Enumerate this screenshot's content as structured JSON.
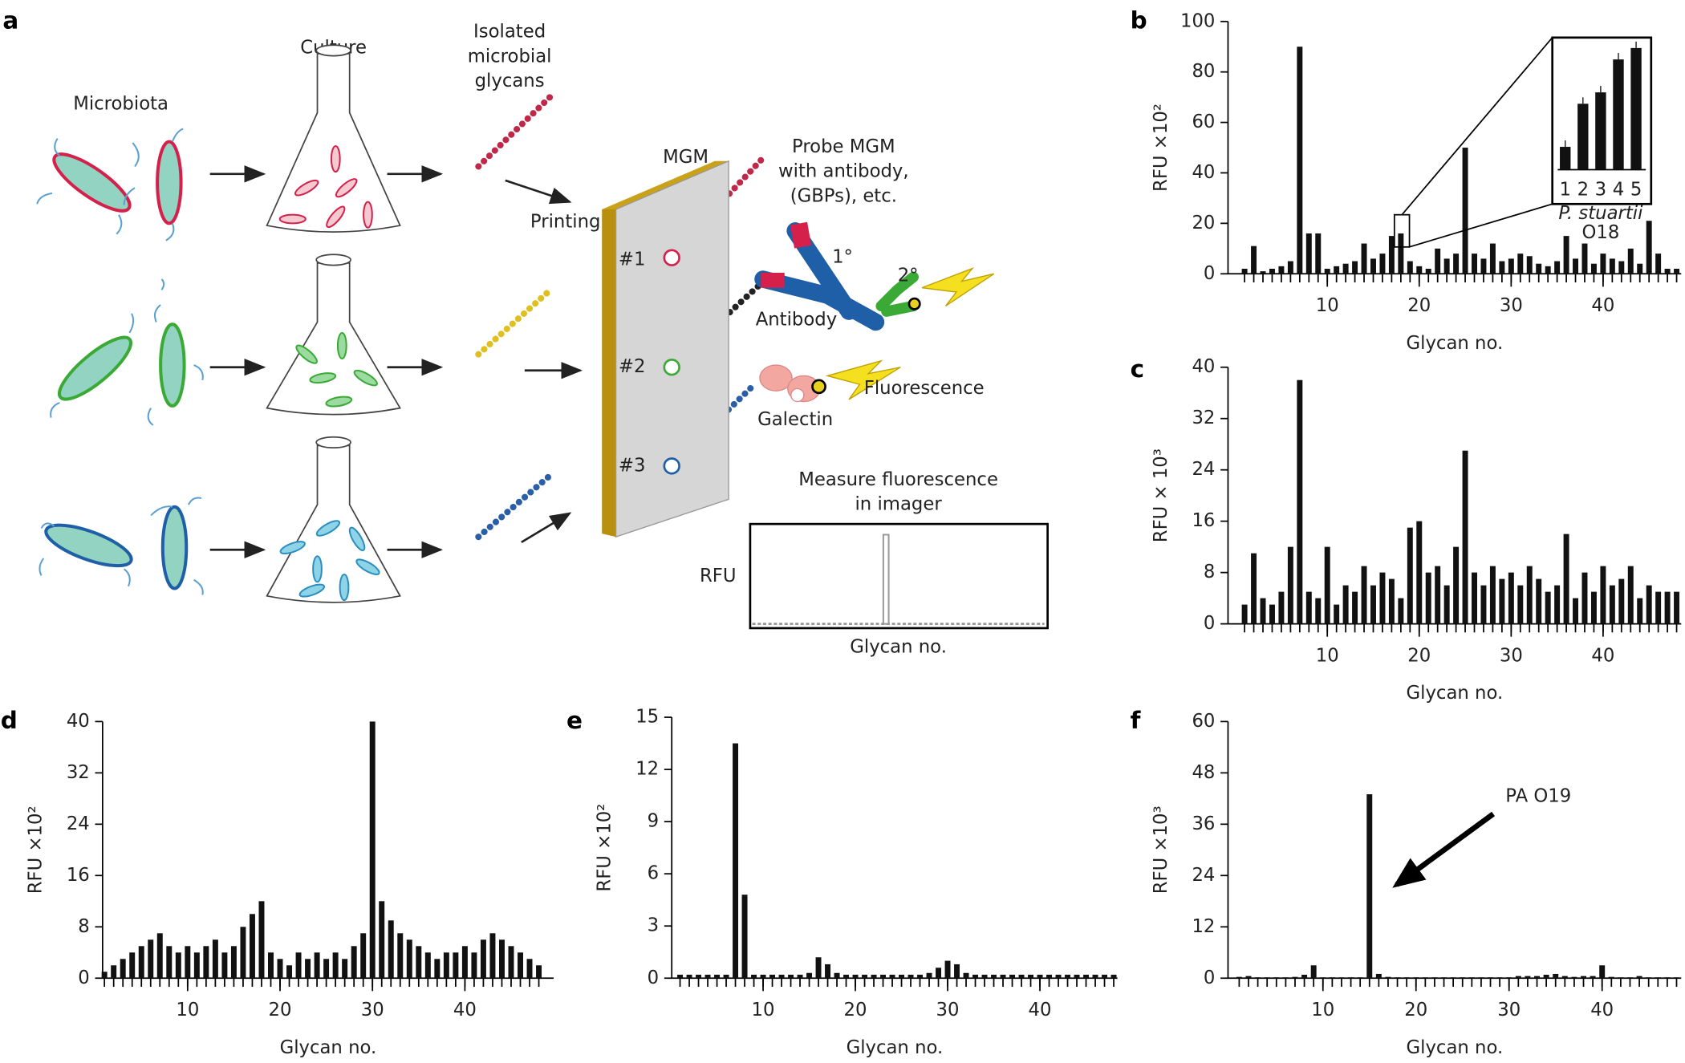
{
  "diagram": {
    "panel": "a",
    "microbiota": "Microbiota",
    "culture": "Culture",
    "isolated": [
      "Isolated",
      "microbial",
      "glycans"
    ],
    "printing": "Printing",
    "mgm": "MGM",
    "probe": [
      "Probe MGM",
      "with antibody,",
      "(GBPs), etc."
    ],
    "spots": [
      "#1",
      "#2",
      "#3"
    ],
    "primary": "1°",
    "secondary": "2°",
    "antibody": "Antibody",
    "fluorescence": "Fluorescence",
    "galectin": "Galectin",
    "measure": [
      "Measure fluorescence",
      "in imager"
    ],
    "rfu": "RFU",
    "glycan": "Glycan no."
  },
  "chart_data": [
    {
      "panel": "b",
      "type": "bar",
      "xlabel": "Glycan no.",
      "ylabel": "RFU ×10²",
      "color": "#111",
      "x": [
        1,
        2,
        3,
        4,
        5,
        6,
        7,
        8,
        9,
        10,
        11,
        12,
        13,
        14,
        15,
        16,
        17,
        18,
        19,
        20,
        21,
        22,
        23,
        24,
        25,
        26,
        27,
        28,
        29,
        30,
        31,
        32,
        33,
        34,
        35,
        36,
        37,
        38,
        39,
        40,
        41,
        42,
        43,
        44,
        45,
        46,
        47,
        48
      ],
      "values": [
        2,
        11,
        1,
        2,
        3,
        5,
        90,
        16,
        16,
        2,
        3,
        4,
        5,
        12,
        6,
        8,
        15,
        16,
        5,
        3,
        2,
        10,
        6,
        8,
        50,
        8,
        6,
        12,
        5,
        6,
        8,
        7,
        4,
        3,
        5,
        15,
        6,
        12,
        4,
        8,
        6,
        5,
        10,
        4,
        21,
        8,
        2,
        2
      ],
      "xlim": [
        -0.8,
        48.5
      ],
      "xticks": [
        10,
        20,
        30,
        40
      ],
      "ylim": [
        0,
        100
      ],
      "yticks": [
        0,
        20,
        40,
        60,
        80,
        100
      ],
      "inset": {
        "type": "bar",
        "categories": [
          "1",
          "2",
          "3",
          "4",
          "5"
        ],
        "values": [
          18,
          52,
          61,
          87,
          96
        ],
        "ylim": [
          0,
          100
        ],
        "caption": [
          "P. stuartii",
          "O18"
        ]
      }
    },
    {
      "panel": "c",
      "type": "bar",
      "xlabel": "Glycan no.",
      "ylabel": "RFU × 10³",
      "color": "#111",
      "x": [
        1,
        2,
        3,
        4,
        5,
        6,
        7,
        8,
        9,
        10,
        11,
        12,
        13,
        14,
        15,
        16,
        17,
        18,
        19,
        20,
        21,
        22,
        23,
        24,
        25,
        26,
        27,
        28,
        29,
        30,
        31,
        32,
        33,
        34,
        35,
        36,
        37,
        38,
        39,
        40,
        41,
        42,
        43,
        44,
        45,
        46,
        47,
        48
      ],
      "values": [
        3,
        11,
        4,
        3,
        5,
        12,
        38,
        5,
        4,
        12,
        3,
        6,
        5,
        9,
        6,
        8,
        7,
        4,
        15,
        16,
        8,
        9,
        6,
        12,
        27,
        8,
        6,
        9,
        7,
        8,
        6,
        9,
        7,
        5,
        6,
        14,
        4,
        8,
        5,
        9,
        6,
        7,
        9,
        4,
        6,
        5,
        5,
        5
      ],
      "xlim": [
        -0.8,
        48.5
      ],
      "xticks": [
        10,
        20,
        30,
        40
      ],
      "ylim": [
        0,
        40
      ],
      "yticks": [
        0,
        8,
        16,
        24,
        32,
        40
      ]
    },
    {
      "panel": "d",
      "type": "bar",
      "xlabel": "Glycan no.",
      "ylabel": "RFU ×10²",
      "color": "#111",
      "x": [
        1,
        2,
        3,
        4,
        5,
        6,
        7,
        8,
        9,
        10,
        11,
        12,
        13,
        14,
        15,
        16,
        17,
        18,
        19,
        20,
        21,
        22,
        23,
        24,
        25,
        26,
        27,
        28,
        29,
        30,
        31,
        32,
        33,
        34,
        35,
        36,
        37,
        38,
        39,
        40,
        41,
        42,
        43,
        44,
        45,
        46,
        47,
        48
      ],
      "values": [
        1,
        2,
        3,
        4,
        5,
        6,
        7,
        5,
        4,
        5,
        4,
        5,
        6,
        4,
        5,
        8,
        10,
        12,
        4,
        3,
        2,
        4,
        3,
        4,
        3,
        4,
        3,
        5,
        7,
        40,
        12,
        9,
        7,
        6,
        5,
        4,
        3,
        4,
        4,
        5,
        4,
        6,
        7,
        6,
        5,
        4,
        3,
        2
      ],
      "xlim": [
        0.8,
        49.6
      ],
      "xticks": [
        10,
        20,
        30,
        40
      ],
      "ylim": [
        0,
        40
      ],
      "yticks": [
        0,
        8,
        16,
        24,
        32,
        40
      ]
    },
    {
      "panel": "e",
      "type": "bar",
      "xlabel": "Glycan no.",
      "ylabel": "RFU ×10²",
      "color": "#111",
      "x": [
        1,
        2,
        3,
        4,
        5,
        6,
        7,
        8,
        9,
        10,
        11,
        12,
        13,
        14,
        15,
        16,
        17,
        18,
        19,
        20,
        21,
        22,
        23,
        24,
        25,
        26,
        27,
        28,
        29,
        30,
        31,
        32,
        33,
        34,
        35,
        36,
        37,
        38,
        39,
        40,
        41,
        42,
        43,
        44,
        45,
        46,
        47,
        48
      ],
      "values": [
        0.2,
        0.2,
        0.2,
        0.2,
        0.2,
        0.2,
        13.5,
        4.8,
        0.2,
        0.2,
        0.2,
        0.2,
        0.2,
        0.2,
        0.3,
        1.2,
        0.8,
        0.3,
        0.2,
        0.2,
        0.2,
        0.2,
        0.2,
        0.2,
        0.2,
        0.2,
        0.2,
        0.3,
        0.6,
        1,
        0.8,
        0.3,
        0.2,
        0.2,
        0.2,
        0.2,
        0.2,
        0.2,
        0.2,
        0.2,
        0.2,
        0.2,
        0.2,
        0.2,
        0.2,
        0.2,
        0.2,
        0.2
      ],
      "xlim": [
        0.1,
        48.4
      ],
      "xticks": [
        10,
        20,
        30,
        40
      ],
      "ylim": [
        0,
        15
      ],
      "yticks": [
        0,
        3,
        6,
        9,
        12,
        15
      ]
    },
    {
      "panel": "f",
      "type": "bar",
      "xlabel": "Glycan no.",
      "ylabel": "RFU ×10³",
      "color": "#111",
      "annotation": "PA O19",
      "x": [
        1,
        2,
        3,
        4,
        5,
        6,
        7,
        8,
        9,
        10,
        11,
        12,
        13,
        14,
        15,
        16,
        17,
        18,
        19,
        20,
        21,
        22,
        23,
        24,
        25,
        26,
        27,
        28,
        29,
        30,
        31,
        32,
        33,
        34,
        35,
        36,
        37,
        38,
        39,
        40,
        41,
        42,
        43,
        44,
        45,
        46,
        47,
        48
      ],
      "values": [
        0.3,
        0.5,
        0.2,
        0.2,
        0.2,
        0.2,
        0.3,
        0.8,
        3,
        0.2,
        0.2,
        0.2,
        0.2,
        0.2,
        43,
        1,
        0.3,
        0.2,
        0.2,
        0.2,
        0.2,
        0.2,
        0.2,
        0.2,
        0.2,
        0.2,
        0.2,
        0.2,
        0.2,
        0.2,
        0.5,
        0.5,
        0.5,
        0.8,
        1,
        0.5,
        0.3,
        0.5,
        0.5,
        3,
        0.3,
        0.2,
        0.2,
        0.5,
        0.2,
        0.2,
        0.2,
        0.2
      ],
      "xlim": [
        -0.2,
        48.5
      ],
      "xticks": [
        10,
        20,
        30,
        40
      ],
      "ylim": [
        0,
        60
      ],
      "yticks": [
        0,
        12,
        24,
        36,
        48,
        60
      ]
    }
  ]
}
